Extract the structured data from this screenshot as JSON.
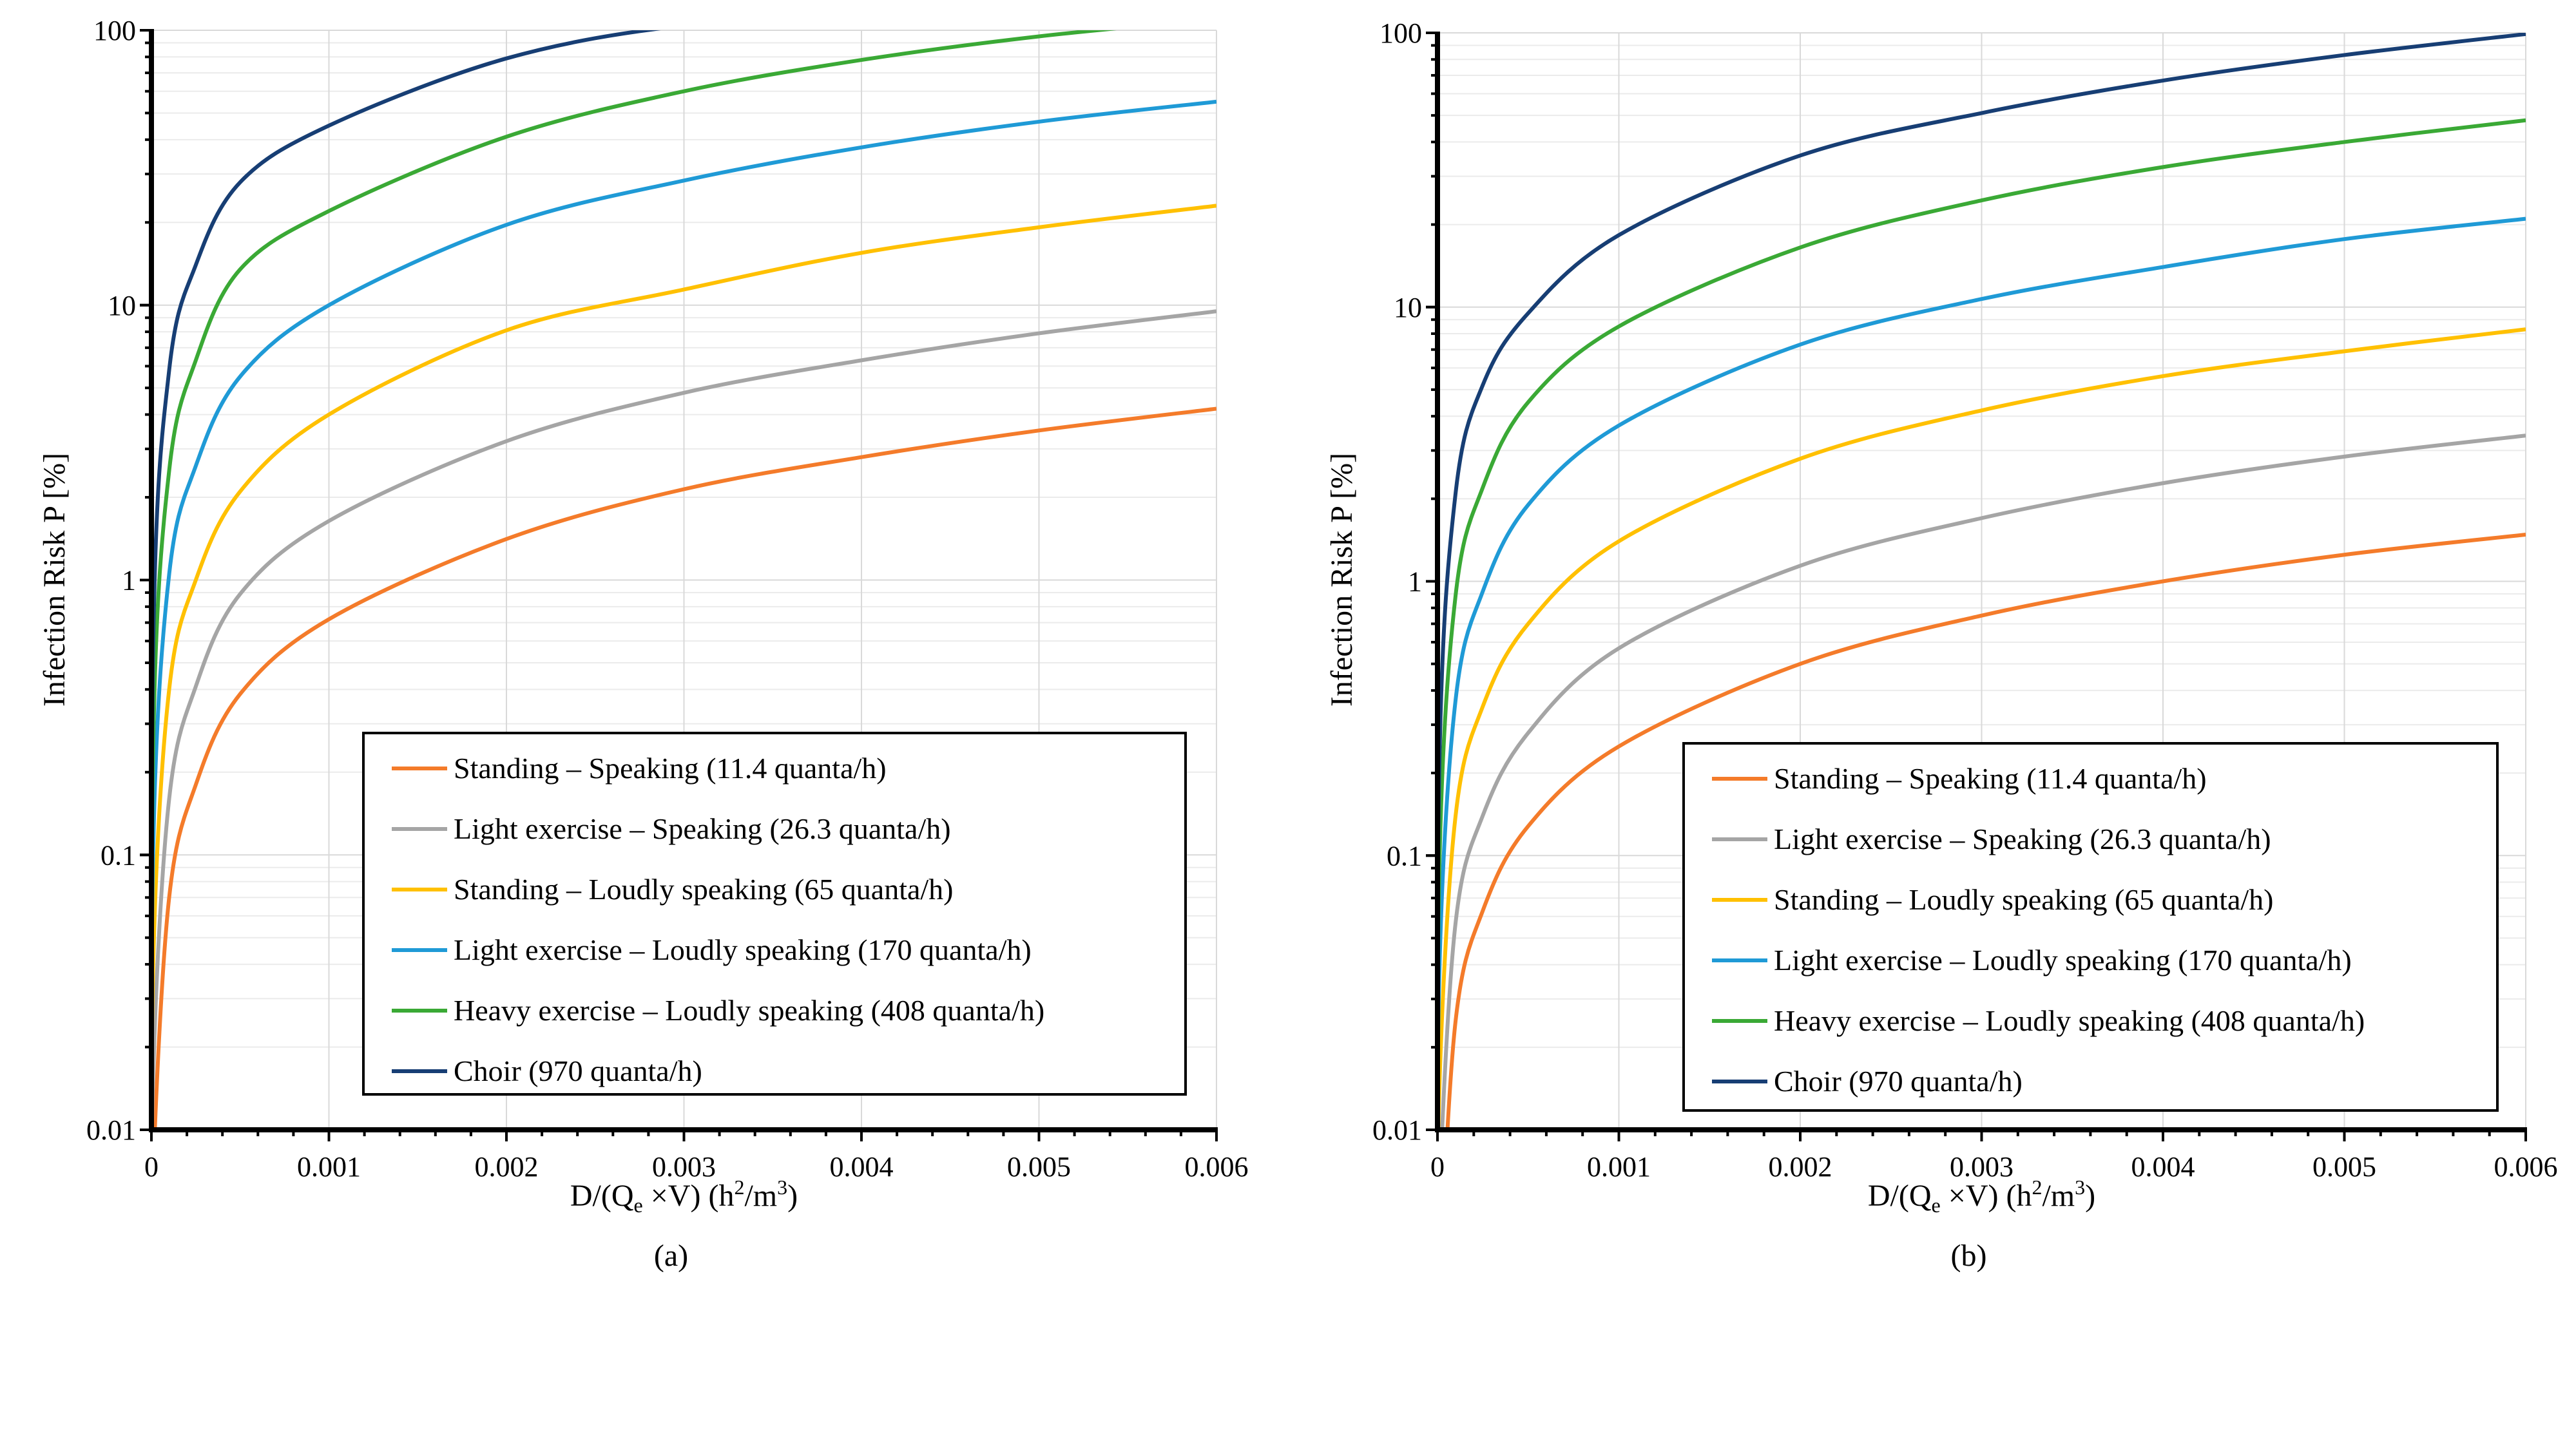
{
  "chart_data": [
    {
      "type": "line",
      "caption": "(a)",
      "xlabel": {
        "main": "D/(Q",
        "sub": "e",
        "mid": " ×V)  (h",
        "sup1": "2",
        "mid2": "/m",
        "sup2": "3",
        "end": ")"
      },
      "ylabel": "Infection Risk P [%]",
      "xlim": [
        0,
        0.006
      ],
      "ylim": [
        0.01,
        100
      ],
      "yscale": "log",
      "grid": true,
      "legend_position": "bottom-right",
      "xticks": [
        "0",
        "0.001",
        "0.002",
        "0.003",
        "0.004",
        "0.005",
        "0.006"
      ],
      "yticks": [
        "0.01",
        "0.1",
        "1",
        "10",
        "100"
      ],
      "x": [
        1e-05,
        0.0001,
        0.00025,
        0.0005,
        0.001,
        0.002,
        0.003,
        0.004,
        0.005,
        0.006
      ],
      "series": [
        {
          "name": "Standing – Speaking (11.4  quanta/h)",
          "color": "#f47b2a",
          "values": [
            0.007,
            0.07,
            0.18,
            0.385,
            0.72,
            1.41,
            2.14,
            2.8,
            3.5,
            4.2
          ]
        },
        {
          "name": "Light exercise – Speaking (26.3 quanta/h)",
          "color": "#a5a5a5",
          "values": [
            0.016,
            0.16,
            0.41,
            0.89,
            1.64,
            3.2,
            4.8,
            6.3,
            7.9,
            9.5
          ]
        },
        {
          "name": "Standing – Loudly speaking  (65 quanta/h)",
          "color": "#ffc000",
          "values": [
            0.04,
            0.4,
            1.0,
            2.1,
            4.0,
            8.1,
            11.4,
            15.5,
            19.2,
            23
          ]
        },
        {
          "name": "Light exercise – Loudly speaking (170 quanta/h)",
          "color": "#1f9ad6",
          "values": [
            0.105,
            1.05,
            2.6,
            5.5,
            10,
            19.6,
            28.4,
            37.5,
            46.5,
            55
          ]
        },
        {
          "name": "Heavy exercise – Loudly speaking  (408 quanta/h)",
          "color": "#3aa935",
          "values": [
            0.25,
            2.5,
            6.3,
            13.5,
            22,
            41,
            60,
            78,
            95,
            110
          ]
        },
        {
          "name": "Choir (970 quanta/h)",
          "color": "#173e74",
          "values": [
            0.58,
            5.8,
            14,
            28,
            45,
            79,
            104,
            110,
            110,
            110
          ]
        }
      ]
    },
    {
      "type": "line",
      "caption": "(b)",
      "xlabel": {
        "main": "D/(Q",
        "sub": "e",
        "mid": " ×V) (h",
        "sup1": "2",
        "mid2": "/m",
        "sup2": "3",
        "end": ")"
      },
      "ylabel": "Infection Risk P [%]",
      "xlim": [
        0,
        0.006
      ],
      "ylim": [
        0.01,
        100
      ],
      "yscale": "log",
      "grid": true,
      "legend_position": "bottom-right",
      "xticks": [
        "0",
        "0.001",
        "0.002",
        "0.003",
        "0.004",
        "0.005",
        "0.006"
      ],
      "yticks": [
        "0.01",
        "0.1",
        "1",
        "10",
        "100"
      ],
      "x": [
        1e-05,
        0.0001,
        0.00025,
        0.0005,
        0.001,
        0.002,
        0.003,
        0.004,
        0.005,
        0.006
      ],
      "series": [
        {
          "name": "Standing – Speaking (11.4  quanta/h)",
          "color": "#f47b2a",
          "values": [
            0.0025,
            0.025,
            0.063,
            0.128,
            0.25,
            0.5,
            0.75,
            1.0,
            1.25,
            1.48
          ]
        },
        {
          "name": "Light exercise – Speaking (26.3 quanta/h)",
          "color": "#a5a5a5",
          "values": [
            0.0057,
            0.057,
            0.14,
            0.28,
            0.57,
            1.14,
            1.7,
            2.28,
            2.85,
            3.4
          ]
        },
        {
          "name": "Standing – Loudly speaking  (65 quanta/h)",
          "color": "#ffc000",
          "values": [
            0.014,
            0.14,
            0.35,
            0.7,
            1.4,
            2.8,
            4.2,
            5.6,
            6.9,
            8.3
          ]
        },
        {
          "name": "Light exercise – Loudly speaking (170 quanta/h)",
          "color": "#1f9ad6",
          "values": [
            0.037,
            0.37,
            0.92,
            1.9,
            3.7,
            7.3,
            10.7,
            14,
            17.7,
            21
          ]
        },
        {
          "name": "Heavy exercise – Loudly speaking  (408 quanta/h)",
          "color": "#3aa935",
          "values": [
            0.089,
            0.89,
            2.2,
            4.5,
            8.5,
            16.5,
            24.5,
            32.4,
            40,
            48
          ]
        },
        {
          "name": "Choir (970 quanta/h)",
          "color": "#173e74",
          "values": [
            0.21,
            2.1,
            5.2,
            9.5,
            18.3,
            35.7,
            51,
            67,
            83,
            99
          ]
        }
      ]
    }
  ]
}
